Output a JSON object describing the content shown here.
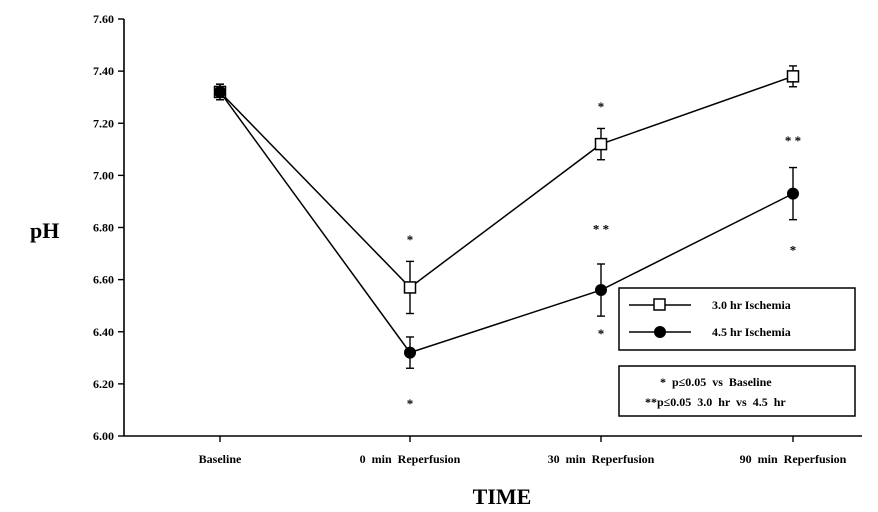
{
  "chart_data": {
    "type": "line",
    "title": "",
    "xlabel": "TIME",
    "ylabel": "pH",
    "categories": [
      "Baseline",
      "0  min  Reperfusion",
      "30  min  Reperfusion",
      "90  min  Reperfusion"
    ],
    "ylim": [
      6.0,
      7.6
    ],
    "yticks": [
      "6.00",
      "6.20",
      "6.40",
      "6.60",
      "6.80",
      "7.00",
      "7.20",
      "7.40",
      "7.60"
    ],
    "grid": false,
    "series": [
      {
        "name": "3.0 hr Ischemia",
        "marker": "open-square",
        "values": [
          7.32,
          6.57,
          7.12,
          7.38
        ],
        "err": [
          0.03,
          0.1,
          0.06,
          0.04
        ]
      },
      {
        "name": "4.5 hr Ischemia",
        "marker": "filled-circle",
        "values": [
          7.32,
          6.32,
          6.56,
          6.93
        ],
        "err": [
          0.03,
          0.06,
          0.1,
          0.1
        ]
      }
    ],
    "annotations": [
      {
        "text": "*",
        "x": "0  min  Reperfusion",
        "y": 6.76
      },
      {
        "text": "*",
        "x": "0  min  Reperfusion",
        "y": 6.13
      },
      {
        "text": "*",
        "x": "30  min  Reperfusion",
        "y": 7.27
      },
      {
        "text": "* *",
        "x": "30  min  Reperfusion",
        "y": 6.8
      },
      {
        "text": "*",
        "x": "30  min  Reperfusion",
        "y": 6.4
      },
      {
        "text": "* *",
        "x": "90  min  Reperfusion",
        "y": 7.14
      },
      {
        "text": "*",
        "x": "90  min  Reperfusion",
        "y": 6.72
      }
    ],
    "legend_position": "right",
    "significance_notes": [
      "*  p≤0.05  vs  Baseline",
      "**p≤0.05  3.0  hr  vs  4.5  hr"
    ]
  }
}
